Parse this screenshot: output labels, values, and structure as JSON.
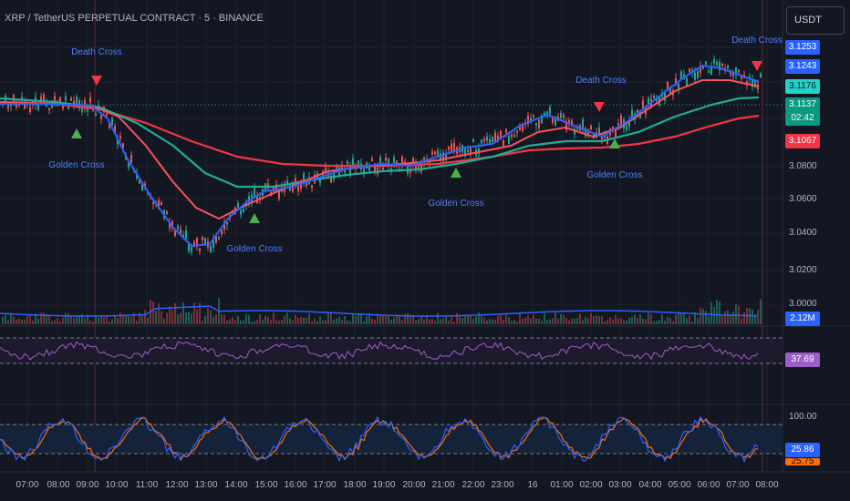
{
  "header": {
    "title": "XRP / TetherUS PERPETUAL CONTRACT · 5 · BINANCE",
    "currency_button": "USDT"
  },
  "colors": {
    "background": "#131722",
    "up": "#26a69a",
    "down": "#ef5350",
    "ema_fast": "#2962ff",
    "ema_mid": "#f7525f",
    "ema_teal": "#22ab94",
    "ema_slow": "#f23645",
    "rsi": "#9c5fc7",
    "stoch_k": "#2962ff",
    "stoch_d": "#ff6d00",
    "annotation": "#4f7fff"
  },
  "price_axis": {
    "ticks": [
      "3.0800",
      "3.0600",
      "3.0400",
      "3.0200",
      "3.0000"
    ],
    "badges": [
      {
        "label": "3.1253",
        "color": "#2962ff"
      },
      {
        "label": "3.1243",
        "color": "#2962ff"
      },
      {
        "label": "3.1176",
        "color": "#22d3c5"
      },
      {
        "label": "3.1137",
        "color": "#089981"
      },
      {
        "label": "02:42",
        "color": "#089981"
      },
      {
        "label": "3.1067",
        "color": "#f23645"
      }
    ],
    "volume_badge": "2.12M",
    "rsi_badge": "37.69",
    "stoch_tick": "100.00",
    "stoch_badge": "25.86",
    "stoch_badge2": "25.75"
  },
  "time_axis": [
    "07:00",
    "08:00",
    "09:00",
    "10:00",
    "11:00",
    "12:00",
    "13:00",
    "14:00",
    "15:00",
    "16:00",
    "17:00",
    "18:00",
    "19:00",
    "20:00",
    "21:00",
    "22:00",
    "23:00",
    "16",
    "01:00",
    "02:00",
    "03:00",
    "04:00",
    "05:00",
    "06:00",
    "07:00",
    "08:00"
  ],
  "annotations": [
    {
      "text": "Death Cross",
      "kind": "death"
    },
    {
      "text": "Golden Cross",
      "kind": "golden"
    },
    {
      "text": "Golden Cross",
      "kind": "golden"
    },
    {
      "text": "Golden Cross",
      "kind": "golden"
    },
    {
      "text": "Death Cross",
      "kind": "death"
    },
    {
      "text": "Golden Cross",
      "kind": "golden"
    },
    {
      "text": "Death Cross",
      "kind": "death"
    }
  ]
}
